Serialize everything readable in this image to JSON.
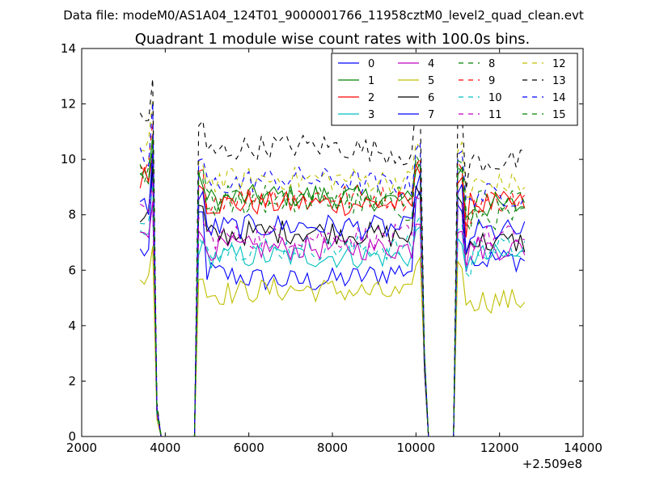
{
  "suptitle": "Data file: modeM0/AS1A04_124T01_9000001766_11958cztM0_level2_quad_clean.evt",
  "chart_data": {
    "type": "line",
    "title": "Quadrant 1 module wise count rates with 100.0s bins.",
    "xlabel": "",
    "ylabel": "",
    "x_offset_label": "+2.509e8",
    "xlim": [
      2000,
      14000
    ],
    "ylim": [
      0,
      14
    ],
    "xticks": [
      2000,
      4000,
      6000,
      8000,
      10000,
      12000,
      14000
    ],
    "yticks": [
      0,
      2,
      4,
      6,
      8,
      10,
      12,
      14
    ],
    "grid": false,
    "legend_placement": "top-right",
    "segments": [
      {
        "start": 3400,
        "step": 100,
        "count": 4
      },
      {
        "start": 3800,
        "step": 100,
        "count": 10,
        "gap": true
      },
      {
        "start": 4800,
        "step": 100,
        "count": 54
      },
      {
        "start": 10200,
        "step": 100,
        "count": 8,
        "gap": true
      },
      {
        "start": 11000,
        "step": 100,
        "count": 17
      }
    ],
    "series": [
      {
        "name": "0",
        "color": "#0000ff",
        "dash": "solid",
        "base": 6.0,
        "peak": 8.0,
        "trend": -0.4
      },
      {
        "name": "1",
        "color": "#008000",
        "dash": "solid",
        "base": 8.5,
        "peak": 9.2,
        "trend": 0.2
      },
      {
        "name": "2",
        "color": "#ff0000",
        "dash": "solid",
        "base": 8.4,
        "peak": 9.0,
        "trend": 0.0
      },
      {
        "name": "3",
        "color": "#00bfbf",
        "dash": "solid",
        "base": 6.5,
        "peak": 6.8,
        "trend": 0.0
      },
      {
        "name": "4",
        "color": "#bf00bf",
        "dash": "solid",
        "base": 6.8,
        "peak": 7.2,
        "trend": 0.0
      },
      {
        "name": "5",
        "color": "#bfbf00",
        "dash": "solid",
        "base": 5.1,
        "peak": 5.8,
        "trend": 0.2
      },
      {
        "name": "6",
        "color": "#000000",
        "dash": "solid",
        "base": 7.2,
        "peak": 8.2,
        "trend": 0.2
      },
      {
        "name": "7",
        "color": "#0000ff",
        "dash": "solid",
        "base": 7.5,
        "peak": 8.6,
        "trend": 0.1
      },
      {
        "name": "8",
        "color": "#008000",
        "dash": "dashed",
        "base": 8.2,
        "peak": 9.2,
        "trend": 0.3
      },
      {
        "name": "9",
        "color": "#ff0000",
        "dash": "dashed",
        "base": 8.6,
        "peak": 9.4,
        "trend": 0.1
      },
      {
        "name": "10",
        "color": "#00bfbf",
        "dash": "dashed",
        "base": 6.8,
        "peak": 7.2,
        "trend": 0.0
      },
      {
        "name": "11",
        "color": "#bf00bf",
        "dash": "dashed",
        "base": 7.2,
        "peak": 7.8,
        "trend": 0.0
      },
      {
        "name": "12",
        "color": "#bfbf00",
        "dash": "dashed",
        "base": 9.2,
        "peak": 10.0,
        "trend": 0.1
      },
      {
        "name": "13",
        "color": "#000000",
        "dash": "dashed",
        "base": 10.2,
        "peak": 11.2,
        "trend": 0.3
      },
      {
        "name": "14",
        "color": "#0000ff",
        "dash": "dashed",
        "base": 9.0,
        "peak": 10.0,
        "trend": 0.3
      },
      {
        "name": "15",
        "color": "#008000",
        "dash": "dashed",
        "base": 8.6,
        "peak": 9.4,
        "trend": 0.1
      }
    ]
  }
}
